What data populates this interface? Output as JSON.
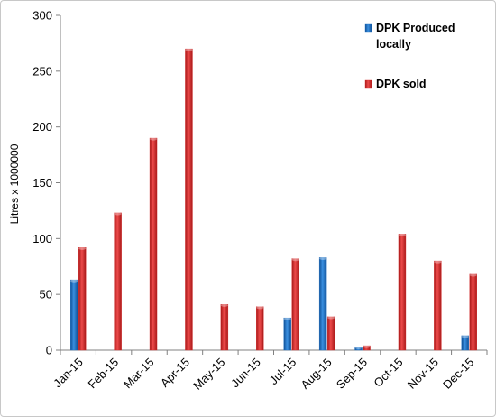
{
  "chart_data": {
    "type": "bar",
    "title": "",
    "xlabel": "",
    "ylabel": "Litres x 1000000",
    "ylim": [
      0,
      300
    ],
    "yticks": [
      0,
      50,
      100,
      150,
      200,
      250,
      300
    ],
    "grid": false,
    "legend_position": "top-right",
    "categories": [
      "Jan-15",
      "Feb-15",
      "Mar-15",
      "Apr-15",
      "May-15",
      "Jun-15",
      "Jul-15",
      "Aug-15",
      "Sep-15",
      "Oct-15",
      "Nov-15",
      "Dec-15"
    ],
    "series": [
      {
        "name": "DPK Produced locally",
        "legend_lines": [
          "DPK Produced",
          "locally"
        ],
        "color": "#1f6fc0",
        "values": [
          63,
          0,
          0,
          0,
          0,
          0,
          29,
          83,
          3,
          0,
          0,
          13
        ]
      },
      {
        "name": "DPK sold",
        "legend_lines": [
          "DPK sold"
        ],
        "color": "#d42a2a",
        "values": [
          92,
          123,
          190,
          270,
          41,
          39,
          82,
          30,
          4,
          104,
          80,
          68
        ]
      }
    ]
  }
}
